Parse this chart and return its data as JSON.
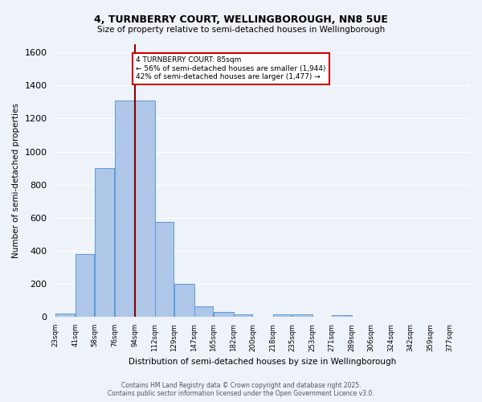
{
  "title": "4, TURNBERRY COURT, WELLINGBOROUGH, NN8 5UE",
  "subtitle": "Size of property relative to semi-detached houses in Wellingborough",
  "xlabel": "Distribution of semi-detached houses by size in Wellingborough",
  "ylabel": "Number of semi-detached properties",
  "footer_line1": "Contains HM Land Registry data © Crown copyright and database right 2025.",
  "footer_line2": "Contains public sector information licensed under the Open Government Licence v3.0.",
  "bin_labels": [
    "23sqm",
    "41sqm",
    "58sqm",
    "76sqm",
    "94sqm",
    "112sqm",
    "129sqm",
    "147sqm",
    "165sqm",
    "182sqm",
    "200sqm",
    "218sqm",
    "235sqm",
    "253sqm",
    "271sqm",
    "289sqm",
    "306sqm",
    "324sqm",
    "342sqm",
    "359sqm",
    "377sqm"
  ],
  "bar_values": [
    20,
    380,
    900,
    1310,
    1310,
    575,
    200,
    65,
    30,
    15,
    0,
    15,
    15,
    0,
    10,
    0,
    0,
    0,
    0,
    0,
    0
  ],
  "bar_color": "#aec6e8",
  "bar_edge_color": "#5b9bd5",
  "vline_color": "#8b0000",
  "annotation_text": "4 TURNBERRY COURT: 85sqm\n← 56% of semi-detached houses are smaller (1,944)\n42% of semi-detached houses are larger (1,477) →",
  "annotation_box_color": "#ffffff",
  "annotation_box_edge": "#cc0000",
  "ylim": [
    0,
    1650
  ],
  "background_color": "#eef2f9",
  "plot_bg_color": "#eef2f9",
  "grid_color": "#ffffff",
  "prop_sqm": 85,
  "bin_edges": [
    14,
    32,
    49,
    67,
    85,
    103,
    120,
    138,
    155,
    173,
    190,
    208,
    225,
    243,
    260,
    278,
    295,
    313,
    330,
    348,
    365,
    383
  ]
}
